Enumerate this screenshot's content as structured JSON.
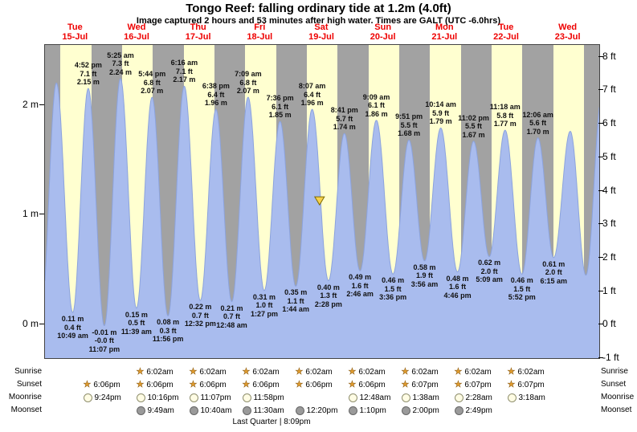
{
  "header": {
    "title": "Tongo Reef: falling  ordinary tide at 1.2m (4.0ft)",
    "subtitle": "Image captured 2 hours and 53 minutes after high water. Times are GALT (UTC -6.0hrs)"
  },
  "days": [
    {
      "name": "Tue",
      "date": "15-Jul"
    },
    {
      "name": "Wed",
      "date": "16-Jul"
    },
    {
      "name": "Thu",
      "date": "17-Jul"
    },
    {
      "name": "Fri",
      "date": "18-Jul"
    },
    {
      "name": "Sat",
      "date": "19-Jul"
    },
    {
      "name": "Sun",
      "date": "20-Jul"
    },
    {
      "name": "Mon",
      "date": "21-Jul"
    },
    {
      "name": "Tue",
      "date": "22-Jul"
    },
    {
      "name": "Wed",
      "date": "23-Jul"
    }
  ],
  "axes": {
    "left_labels": [
      {
        "text": "2 m",
        "meters": 2
      },
      {
        "text": "1 m",
        "meters": 1
      },
      {
        "text": "0 m",
        "meters": 0
      }
    ],
    "right_labels": [
      {
        "text": "8 ft",
        "feet": 8
      },
      {
        "text": "7 ft",
        "feet": 7
      },
      {
        "text": "6 ft",
        "feet": 6
      },
      {
        "text": "5 ft",
        "feet": 5
      },
      {
        "text": "4 ft",
        "feet": 4
      },
      {
        "text": "3 ft",
        "feet": 3
      },
      {
        "text": "2 ft",
        "feet": 2
      },
      {
        "text": "1 ft",
        "feet": 1
      },
      {
        "text": "0 ft",
        "feet": 0
      },
      {
        "text": "-1 ft",
        "feet": -1
      }
    ]
  },
  "chart_data": {
    "type": "area",
    "title": "Tide height over time",
    "x_axis": {
      "start": "Tue 15-Jul 00:00",
      "end": "Wed 23-Jul 24:00",
      "unit": "hours",
      "range_hours": 216
    },
    "y_axis": {
      "unit": "m",
      "ticks_m": [
        0,
        1,
        2
      ],
      "ticks_ft": [
        -1,
        0,
        1,
        2,
        3,
        4,
        5,
        6,
        7,
        8
      ]
    },
    "night_start_hour": 18.1,
    "night_end_hour": 6.03,
    "extremes": [
      {
        "t": -1.6,
        "m": 0.05,
        "type": "low",
        "annotate": false
      },
      {
        "t": 4.45,
        "m": 2.2,
        "type": "high",
        "annotate": false
      },
      {
        "t": 10.82,
        "m": 0.11,
        "type": "low",
        "annotate": true,
        "lines": [
          "0.11 m",
          "0.4 ft",
          "10:49 am"
        ]
      },
      {
        "t": 16.87,
        "m": 2.15,
        "type": "high",
        "annotate": true,
        "lines": [
          "4:52 pm",
          "7.1 ft",
          "2.15 m"
        ]
      },
      {
        "t": 23.12,
        "m": -0.01,
        "type": "low",
        "annotate": true,
        "lines": [
          "-0.01 m",
          "-0.0 ft",
          "11:07 pm"
        ]
      },
      {
        "t": 29.42,
        "m": 2.24,
        "type": "high",
        "annotate": true,
        "lines": [
          "5:25 am",
          "7.3 ft",
          "2.24 m"
        ]
      },
      {
        "t": 35.65,
        "m": 0.15,
        "type": "low",
        "annotate": true,
        "lines": [
          "0.15 m",
          "0.5 ft",
          "11:39 am"
        ]
      },
      {
        "t": 41.73,
        "m": 2.07,
        "type": "high",
        "annotate": true,
        "lines": [
          "5:44 pm",
          "6.8 ft",
          "2.07 m"
        ]
      },
      {
        "t": 47.93,
        "m": 0.08,
        "type": "low",
        "annotate": true,
        "lines": [
          "0.08 m",
          "0.3 ft",
          "11:56 pm"
        ]
      },
      {
        "t": 54.27,
        "m": 2.17,
        "type": "high",
        "annotate": true,
        "lines": [
          "6:16 am",
          "7.1 ft",
          "2.17 m"
        ]
      },
      {
        "t": 60.53,
        "m": 0.22,
        "type": "low",
        "annotate": true,
        "lines": [
          "0.22 m",
          "0.7 ft",
          "12:32 pm"
        ]
      },
      {
        "t": 66.63,
        "m": 1.96,
        "type": "high",
        "annotate": true,
        "lines": [
          "6:38 pm",
          "6.4 ft",
          "1.96 m"
        ]
      },
      {
        "t": 72.8,
        "m": 0.21,
        "type": "low",
        "annotate": true,
        "lines": [
          "0.21 m",
          "0.7 ft",
          "12:48 am"
        ]
      },
      {
        "t": 79.15,
        "m": 2.07,
        "type": "high",
        "annotate": true,
        "lines": [
          "7:09 am",
          "6.8 ft",
          "2.07 m"
        ]
      },
      {
        "t": 85.45,
        "m": 0.31,
        "type": "low",
        "annotate": true,
        "lines": [
          "0.31 m",
          "1.0 ft",
          "1:27 pm"
        ]
      },
      {
        "t": 91.6,
        "m": 1.85,
        "type": "high",
        "annotate": true,
        "lines": [
          "7:36 pm",
          "6.1 ft",
          "1.85 m"
        ]
      },
      {
        "t": 97.73,
        "m": 0.35,
        "type": "low",
        "annotate": true,
        "lines": [
          "0.35 m",
          "1.1 ft",
          "1:44 am"
        ]
      },
      {
        "t": 104.12,
        "m": 1.96,
        "type": "high",
        "annotate": true,
        "lines": [
          "8:07 am",
          "6.4 ft",
          "1.96 m"
        ]
      },
      {
        "t": 110.47,
        "m": 0.4,
        "type": "low",
        "annotate": true,
        "lines": [
          "0.40 m",
          "1.3 ft",
          "2:28 pm"
        ]
      },
      {
        "t": 116.68,
        "m": 1.74,
        "type": "high",
        "annotate": true,
        "lines": [
          "8:41 pm",
          "5.7 ft",
          "1.74 m"
        ]
      },
      {
        "t": 122.77,
        "m": 0.49,
        "type": "low",
        "annotate": true,
        "lines": [
          "0.49 m",
          "1.6 ft",
          "2:46 am"
        ]
      },
      {
        "t": 129.15,
        "m": 1.86,
        "type": "high",
        "annotate": true,
        "lines": [
          "9:09 am",
          "6.1 ft",
          "1.86 m"
        ]
      },
      {
        "t": 135.6,
        "m": 0.46,
        "type": "low",
        "annotate": true,
        "lines": [
          "0.46 m",
          "1.5 ft",
          "3:36 pm"
        ]
      },
      {
        "t": 141.85,
        "m": 1.68,
        "type": "high",
        "annotate": true,
        "lines": [
          "9:51 pm",
          "5.5 ft",
          "1.68 m"
        ]
      },
      {
        "t": 147.93,
        "m": 0.58,
        "type": "low",
        "annotate": true,
        "lines": [
          "0.58 m",
          "1.9 ft",
          "3:56 am"
        ]
      },
      {
        "t": 154.23,
        "m": 1.79,
        "type": "high",
        "annotate": true,
        "lines": [
          "10:14 am",
          "5.9 ft",
          "1.79 m"
        ]
      },
      {
        "t": 160.77,
        "m": 0.48,
        "type": "low",
        "annotate": true,
        "lines": [
          "0.48 m",
          "1.6 ft",
          "4:46 pm"
        ]
      },
      {
        "t": 167.03,
        "m": 1.67,
        "type": "high",
        "annotate": true,
        "lines": [
          "11:02 pm",
          "5.5 ft",
          "1.67 m"
        ]
      },
      {
        "t": 173.15,
        "m": 0.62,
        "type": "low",
        "annotate": true,
        "lines": [
          "0.62 m",
          "2.0 ft",
          "5:09 am"
        ]
      },
      {
        "t": 179.3,
        "m": 1.77,
        "type": "high",
        "annotate": true,
        "lines": [
          "11:18 am",
          "5.8 ft",
          "1.77 m"
        ]
      },
      {
        "t": 185.87,
        "m": 0.46,
        "type": "low",
        "annotate": true,
        "lines": [
          "0.46 m",
          "1.5 ft",
          "5:52 pm"
        ]
      },
      {
        "t": 192.1,
        "m": 1.7,
        "type": "high",
        "annotate": true,
        "lines": [
          "12:06 am",
          "5.6 ft",
          "1.70 m"
        ]
      },
      {
        "t": 198.25,
        "m": 0.61,
        "type": "low",
        "annotate": true,
        "lines": [
          "0.61 m",
          "2.0 ft",
          "6:15 am"
        ]
      },
      {
        "t": 204.7,
        "m": 1.76,
        "type": "high",
        "annotate": false
      },
      {
        "t": 210.8,
        "m": 0.45,
        "type": "low",
        "annotate": false
      },
      {
        "t": 217.1,
        "m": 2.1,
        "type": "high",
        "annotate": false
      }
    ],
    "marker": {
      "t": 107.0,
      "m": 1.2,
      "note": "current tide level 1.2m (4.0ft), falling"
    }
  },
  "astro": {
    "rows": [
      {
        "label": "Sunrise",
        "icon": "star",
        "items": [
          "",
          "6:02am",
          "6:02am",
          "6:02am",
          "6:02am",
          "6:02am",
          "6:02am",
          "6:02am",
          "6:02am"
        ]
      },
      {
        "label": "Sunset",
        "icon": "star",
        "items": [
          "6:06pm",
          "6:06pm",
          "6:06pm",
          "6:06pm",
          "6:06pm",
          "6:06pm",
          "6:07pm",
          "6:07pm",
          "6:07pm"
        ]
      },
      {
        "label": "Moonrise",
        "icon": "moon-light",
        "items": [
          "9:24pm",
          "10:16pm",
          "11:07pm",
          "11:58pm",
          "",
          "12:48am",
          "1:38am",
          "2:28am",
          "3:18am"
        ]
      },
      {
        "label": "Moonset",
        "icon": "moon-dark",
        "items": [
          "",
          "9:49am",
          "10:40am",
          "11:30am",
          "12:20pm",
          "1:10pm",
          "2:00pm",
          "2:49pm",
          ""
        ]
      }
    ],
    "moon_phase": "Last Quarter | 8:09pm"
  },
  "colors": {
    "day_band": "#ffffd0",
    "night_band": "#a2a2a2",
    "tide_fill": "#a9bcee",
    "tide_stroke": "#8ca3dd",
    "day_label": "#ee0000",
    "star": "#e09b2d",
    "marker_fill": "#f7d14c",
    "marker_stroke": "#7c6a00"
  }
}
